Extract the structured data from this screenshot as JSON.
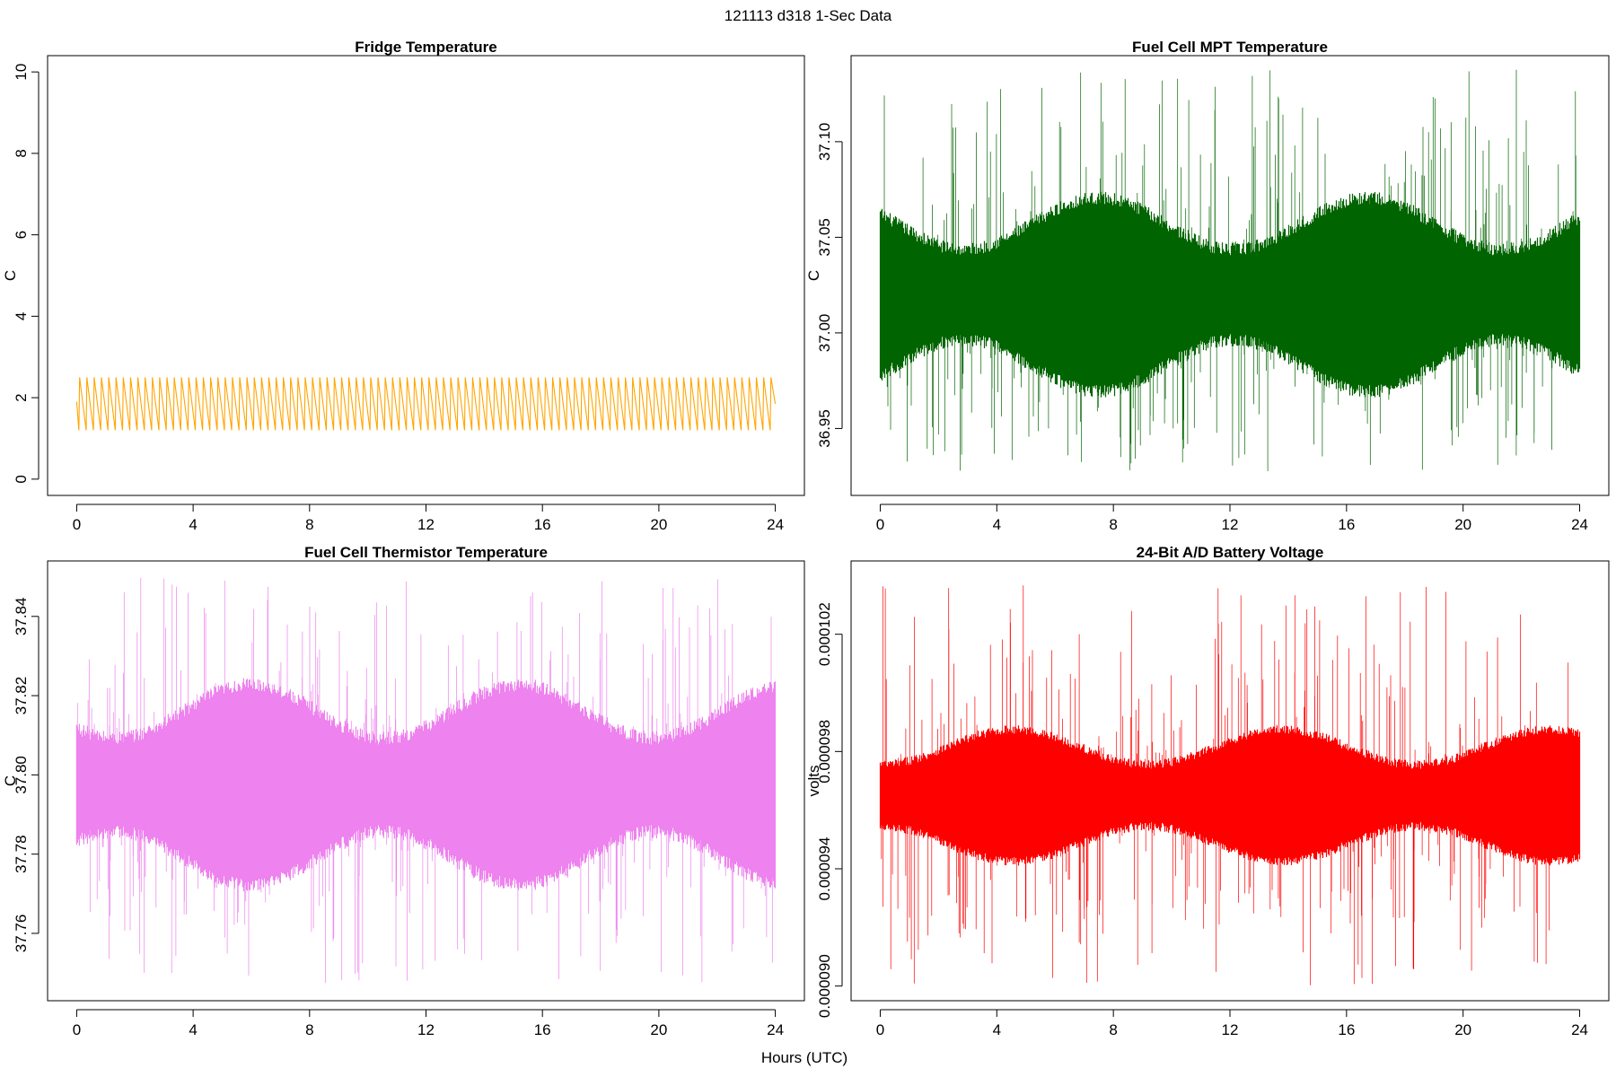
{
  "figure": {
    "title": "121113   d318   1-Sec Data",
    "xlabel": "Hours (UTC)"
  },
  "chart_data": [
    {
      "type": "line",
      "title": "Fridge Temperature",
      "xlabel": "Hours (UTC)",
      "ylabel": "C",
      "color": "#FFA500",
      "xlim": [
        -1.0,
        25.0
      ],
      "ylim": [
        -0.4,
        10.4
      ],
      "x_ticks": [
        0,
        4,
        8,
        12,
        16,
        20,
        24
      ],
      "y_ticks": [
        0,
        2,
        4,
        6,
        8,
        10
      ],
      "y_tick_labels": [
        "0",
        "2",
        "4",
        "6",
        "8",
        "10"
      ],
      "series": {
        "kind": "sawtooth",
        "x_start": 0,
        "x_end": 24,
        "start": 1.9,
        "min": 1.2,
        "max": 2.5,
        "cycles": 96
      }
    },
    {
      "type": "line",
      "title": "Fuel Cell MPT Temperature",
      "xlabel": "Hours (UTC)",
      "ylabel": "C",
      "color": "#006400",
      "xlim": [
        -1.0,
        25.0
      ],
      "ylim": [
        36.915,
        37.145
      ],
      "x_ticks": [
        0,
        4,
        8,
        12,
        16,
        20,
        24
      ],
      "y_ticks": [
        36.95,
        37.0,
        37.05,
        37.1
      ],
      "y_tick_labels": [
        "36.95",
        "37.00",
        "37.05",
        "37.10"
      ],
      "series": {
        "kind": "noise",
        "x_start": 0,
        "x_end": 24,
        "center": 37.02,
        "band_low": 36.975,
        "band_high": 37.065,
        "spike_min": 36.926,
        "spike_max": 37.138
      }
    },
    {
      "type": "line",
      "title": "Fuel Cell Thermistor Temperature",
      "xlabel": "Hours (UTC)",
      "ylabel": "C",
      "color": "#EE82EE",
      "xlim": [
        -1.0,
        25.0
      ],
      "ylim": [
        37.743,
        37.854
      ],
      "x_ticks": [
        0,
        4,
        8,
        12,
        16,
        20,
        24
      ],
      "y_ticks": [
        37.76,
        37.78,
        37.8,
        37.82,
        37.84
      ],
      "y_tick_labels": [
        "37.76",
        "37.78",
        "37.80",
        "37.82",
        "37.84"
      ],
      "series": {
        "kind": "noise",
        "x_start": 0,
        "x_end": 24,
        "center": 37.797,
        "band_low": 37.775,
        "band_high": 37.82,
        "spike_min": 37.747,
        "spike_max": 37.85
      }
    },
    {
      "type": "line",
      "title": "24-Bit A/D Battery Voltage",
      "xlabel": "Hours (UTC)",
      "ylabel": "volts",
      "color": "#FF0000",
      "xlim": [
        -1.0,
        25.0
      ],
      "ylim": [
        8.95e-05,
        0.0001045
      ],
      "x_ticks": [
        0,
        4,
        8,
        12,
        16,
        20,
        24
      ],
      "y_ticks": [
        9e-05,
        9.4e-05,
        9.8e-05,
        0.000102
      ],
      "y_tick_labels": [
        "0.000090",
        "0.000094",
        "0.000098",
        "0.000102"
      ],
      "series": {
        "kind": "noise",
        "x_start": 0,
        "x_end": 24,
        "center": 9.65e-05,
        "band_low": 9.45e-05,
        "band_high": 9.85e-05,
        "spike_min": 9e-05,
        "spike_max": 0.0001038
      }
    }
  ]
}
